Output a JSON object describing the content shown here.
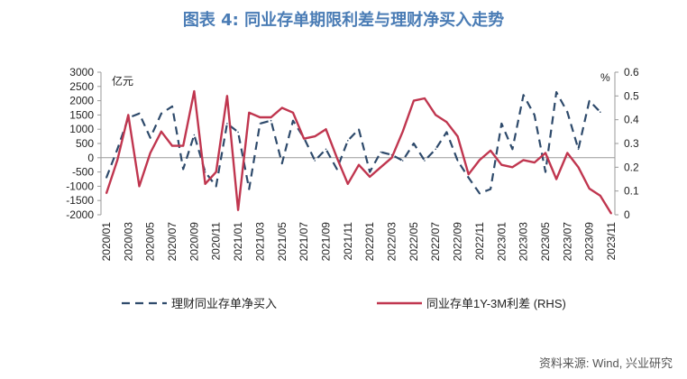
{
  "title": "图表 4: 同业存单期限利差与理财净买入走势",
  "source": "资料来源: Wind, 兴业研究",
  "chart_data": {
    "type": "line",
    "left_axis_unit": "亿元",
    "right_axis_unit": "%",
    "y_left_lim": [
      -2000,
      3000
    ],
    "y_left_ticks": [
      -2000,
      -1500,
      -1000,
      -500,
      0,
      500,
      1000,
      1500,
      2000,
      2500,
      3000
    ],
    "y_right_lim": [
      0,
      0.6
    ],
    "y_right_ticks": [
      0,
      0.1,
      0.2,
      0.3,
      0.4,
      0.5,
      0.6
    ],
    "y_right_tick_labels": [
      "0",
      "0.1",
      "0.2",
      "0.3",
      "0.4",
      "0.5",
      "0.6"
    ],
    "x_labels": [
      "2020/01",
      "2020/03",
      "2020/05",
      "2020/07",
      "2020/09",
      "2020/11",
      "2021/01",
      "2021/03",
      "2021/05",
      "2021/07",
      "2021/09",
      "2021/11",
      "2022/01",
      "2022/03",
      "2022/05",
      "2022/07",
      "2022/09",
      "2022/11",
      "2023/01",
      "2023/03",
      "2023/05",
      "2023/07",
      "2023/09",
      "2023/11"
    ],
    "grid": false,
    "legend_position": "bottom",
    "series": [
      {
        "name": "理财同业存单净买入",
        "axis": "left",
        "style": "dashed",
        "color": "#2e4a6b",
        "values": [
          -700,
          300,
          1400,
          1550,
          700,
          1550,
          1800,
          -400,
          800,
          -500,
          -1000,
          1200,
          900,
          -1100,
          1200,
          1300,
          -200,
          1300,
          700,
          -100,
          300,
          -400,
          600,
          1000,
          -500,
          200,
          100,
          -100,
          500,
          -100,
          300,
          900,
          -100,
          -700,
          -1250,
          -1100,
          1200,
          300,
          2200,
          1500,
          -500,
          2300,
          1600,
          300,
          2000,
          1600
        ],
        "dates": [
          "2020/01",
          "2020/02",
          "2020/03",
          "2020/04",
          "2020/05",
          "2020/06",
          "2020/07",
          "2020/08",
          "2020/09",
          "2020/10",
          "2020/11",
          "2020/12",
          "2021/01",
          "2021/02",
          "2021/03",
          "2021/04",
          "2021/05",
          "2021/06",
          "2021/07",
          "2021/08",
          "2021/09",
          "2021/10",
          "2021/11",
          "2021/12",
          "2022/01",
          "2022/02",
          "2022/03",
          "2022/04",
          "2022/05",
          "2022/06",
          "2022/07",
          "2022/08",
          "2022/09",
          "2022/10",
          "2022/11",
          "2022/12",
          "2023/01",
          "2023/02",
          "2023/03",
          "2023/04",
          "2023/05",
          "2023/06",
          "2023/07",
          "2023/08",
          "2023/09",
          "2023/10"
        ]
      },
      {
        "name": "同业存单1Y-3M利差 (RHS)",
        "axis": "right",
        "style": "solid",
        "color": "#c0364f",
        "values": [
          0.09,
          0.23,
          0.42,
          0.12,
          0.26,
          0.35,
          0.29,
          0.29,
          0.52,
          0.13,
          0.18,
          0.5,
          0.02,
          0.43,
          0.41,
          0.41,
          0.45,
          0.43,
          0.32,
          0.33,
          0.36,
          0.24,
          0.13,
          0.21,
          0.16,
          0.2,
          0.24,
          0.35,
          0.48,
          0.49,
          0.42,
          0.39,
          0.33,
          0.17,
          0.23,
          0.27,
          0.21,
          0.2,
          0.23,
          0.22,
          0.26,
          0.15,
          0.26,
          0.2,
          0.11,
          0.08,
          0.005
        ],
        "dates": [
          "2020/01",
          "2020/02",
          "2020/03",
          "2020/04",
          "2020/05",
          "2020/06",
          "2020/07",
          "2020/08",
          "2020/09",
          "2020/10",
          "2020/11",
          "2020/12",
          "2021/01",
          "2021/02",
          "2021/03",
          "2021/04",
          "2021/05",
          "2021/06",
          "2021/07",
          "2021/08",
          "2021/09",
          "2021/10",
          "2021/11",
          "2021/12",
          "2022/01",
          "2022/02",
          "2022/03",
          "2022/04",
          "2022/05",
          "2022/06",
          "2022/07",
          "2022/08",
          "2022/09",
          "2022/10",
          "2022/11",
          "2022/12",
          "2023/01",
          "2023/02",
          "2023/03",
          "2023/04",
          "2023/05",
          "2023/06",
          "2023/07",
          "2023/08",
          "2023/09",
          "2023/10",
          "2023/11"
        ]
      }
    ]
  }
}
